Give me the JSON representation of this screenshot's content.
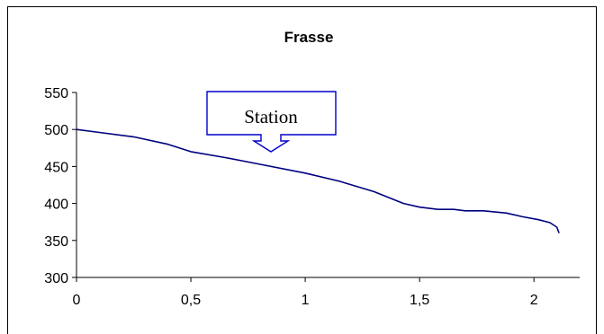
{
  "chart_data": {
    "type": "line",
    "title": "Frasse",
    "xlabel": "",
    "ylabel": "",
    "xlim": [
      0,
      2.2
    ],
    "ylim": [
      300,
      550
    ],
    "x_ticks": [
      {
        "value": 0,
        "label": "0"
      },
      {
        "value": 0.5,
        "label": "0,5"
      },
      {
        "value": 1,
        "label": "1"
      },
      {
        "value": 1.5,
        "label": "1,5"
      },
      {
        "value": 2,
        "label": "2"
      }
    ],
    "y_ticks": [
      {
        "value": 300,
        "label": "300"
      },
      {
        "value": 350,
        "label": "350"
      },
      {
        "value": 400,
        "label": "400"
      },
      {
        "value": 450,
        "label": "450"
      },
      {
        "value": 500,
        "label": "500"
      },
      {
        "value": 550,
        "label": "550"
      }
    ],
    "grid": false,
    "legend": "none",
    "series": [
      {
        "color": "#000080",
        "x": [
          0,
          0.1,
          0.25,
          0.4,
          0.5,
          0.65,
          0.8,
          1.0,
          1.15,
          1.3,
          1.43,
          1.5,
          1.58,
          1.65,
          1.7,
          1.78,
          1.88,
          1.95,
          2.02,
          2.07,
          2.1,
          2.11
        ],
        "y": [
          500,
          496,
          490,
          480,
          470,
          462,
          453,
          441,
          430,
          416,
          400,
          395,
          392,
          392,
          390,
          390,
          387,
          382,
          378,
          374,
          368,
          360
        ]
      }
    ],
    "annotations": [
      {
        "text": "Station",
        "shape": "callout-arrow-down",
        "points_to_x": 0.85
      }
    ]
  }
}
